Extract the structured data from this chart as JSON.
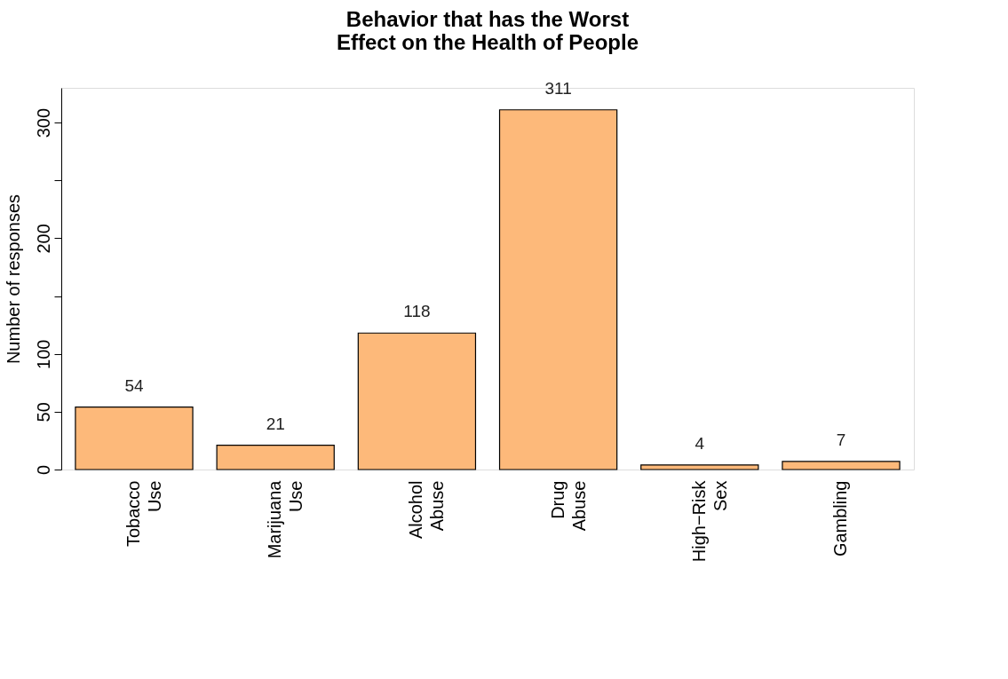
{
  "chart_data": {
    "type": "bar",
    "title": [
      "Behavior that has the Worst",
      "Effect on the Health of People"
    ],
    "ylabel": "Number of responses",
    "categories": [
      "Tobacco Use",
      "Marijuana Use",
      "Alcohol Abuse",
      "Drug Abuse",
      "High−Risk Sex",
      "Gambling"
    ],
    "values": [
      54,
      21,
      118,
      311,
      4,
      7
    ],
    "color": "#fdb97a",
    "ylim": [
      0,
      330
    ],
    "yticks": [
      0,
      50,
      100,
      {
        "value": 150,
        "label": null
      },
      200,
      {
        "value": 250,
        "label": null
      },
      300
    ],
    "data_labels": true,
    "grid": false
  }
}
